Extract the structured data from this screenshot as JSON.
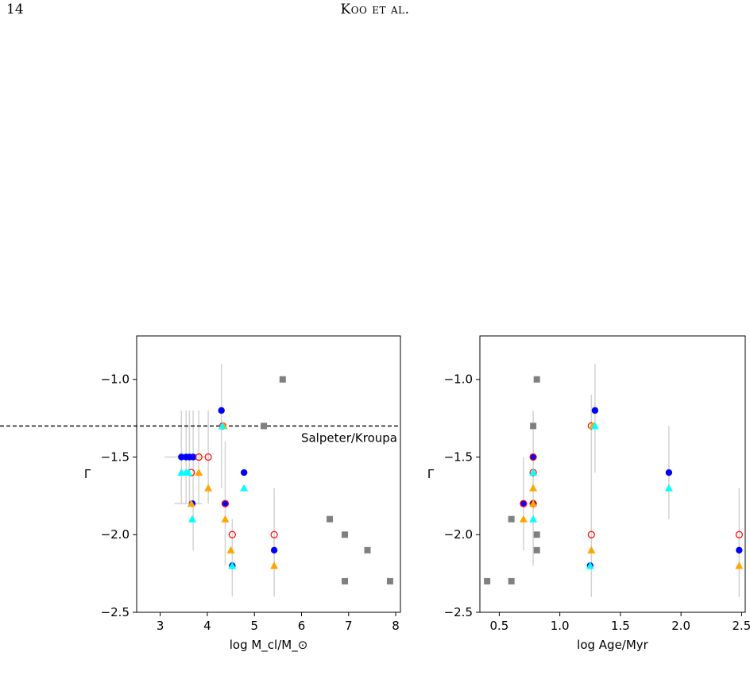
{
  "header": {
    "page_number": "14",
    "running_head": "Koo et al."
  },
  "chart_data": [
    {
      "type": "scatter",
      "title": "",
      "xlabel": "log M_cl/M_⊙",
      "ylabel": "Γ",
      "xlim": [
        2.5,
        8.1
      ],
      "ylim": [
        -2.5,
        -0.72
      ],
      "xticks": [
        "3",
        "4",
        "5",
        "6",
        "7",
        "8"
      ],
      "yticks": [
        "−1.0",
        "−1.5",
        "−2.0",
        "−2.5"
      ],
      "reference_line": {
        "y": -1.3,
        "style": "dashed",
        "label": "Salpeter/Kroupa"
      },
      "grid": false,
      "series": [
        {
          "marker": "circle",
          "color": "#0000ff",
          "points": [
            [
              3.45,
              -1.5
            ],
            [
              3.55,
              -1.5
            ],
            [
              3.62,
              -1.5
            ],
            [
              3.7,
              -1.5
            ],
            [
              4.3,
              -1.2
            ],
            [
              4.78,
              -1.6
            ],
            [
              4.38,
              -1.8
            ],
            [
              3.68,
              -1.8
            ],
            [
              4.53,
              -2.2
            ],
            [
              5.42,
              -2.1
            ]
          ]
        },
        {
          "marker": "open-circle",
          "color": "#ff0000",
          "points": [
            [
              3.82,
              -1.5
            ],
            [
              4.02,
              -1.5
            ],
            [
              3.66,
              -1.6
            ],
            [
              4.33,
              -1.3
            ],
            [
              4.38,
              -1.8
            ],
            [
              4.53,
              -2.0
            ],
            [
              5.42,
              -2.0
            ]
          ]
        },
        {
          "marker": "triangle",
          "color": "#ffa500",
          "points": [
            [
              3.82,
              -1.6
            ],
            [
              4.02,
              -1.7
            ],
            [
              3.66,
              -1.8
            ],
            [
              4.35,
              -1.3
            ],
            [
              4.38,
              -1.9
            ],
            [
              4.5,
              -2.1
            ],
            [
              5.42,
              -2.2
            ]
          ]
        },
        {
          "marker": "triangle",
          "color": "#00ffff",
          "points": [
            [
              3.45,
              -1.6
            ],
            [
              3.55,
              -1.6
            ],
            [
              3.6,
              -1.6
            ],
            [
              3.68,
              -1.9
            ],
            [
              4.32,
              -1.3
            ],
            [
              4.78,
              -1.7
            ],
            [
              4.53,
              -2.2
            ]
          ]
        },
        {
          "marker": "square",
          "color": "#808080",
          "points": [
            [
              5.6,
              -1.0
            ],
            [
              5.2,
              -1.3
            ],
            [
              6.6,
              -1.9
            ],
            [
              6.92,
              -2.0
            ],
            [
              7.4,
              -2.1
            ],
            [
              6.92,
              -2.3
            ],
            [
              7.88,
              -2.3
            ]
          ]
        }
      ]
    },
    {
      "type": "scatter",
      "title": "",
      "xlabel": "log Age/Myr",
      "ylabel": "Γ",
      "xlim": [
        0.34,
        2.53
      ],
      "ylim": [
        -2.5,
        -0.72
      ],
      "xticks": [
        "0.5",
        "1.0",
        "1.5",
        "2.0",
        "2.5"
      ],
      "yticks": [
        "−1.0",
        "−1.5",
        "−2.0",
        "−2.5"
      ],
      "grid": false,
      "series": [
        {
          "marker": "circle",
          "color": "#0000ff",
          "points": [
            [
              1.29,
              -1.2
            ],
            [
              0.78,
              -1.5
            ],
            [
              1.9,
              -1.6
            ],
            [
              0.7,
              -1.8
            ],
            [
              0.78,
              -1.8
            ],
            [
              1.25,
              -2.2
            ],
            [
              2.48,
              -2.1
            ]
          ]
        },
        {
          "marker": "open-circle",
          "color": "#ff0000",
          "points": [
            [
              1.26,
              -1.3
            ],
            [
              0.78,
              -1.5
            ],
            [
              0.78,
              -1.6
            ],
            [
              0.7,
              -1.8
            ],
            [
              0.78,
              -1.8
            ],
            [
              1.26,
              -2.0
            ],
            [
              2.48,
              -2.0
            ]
          ]
        },
        {
          "marker": "triangle",
          "color": "#ffa500",
          "points": [
            [
              1.27,
              -1.3
            ],
            [
              0.78,
              -1.7
            ],
            [
              0.7,
              -1.9
            ],
            [
              0.78,
              -1.8
            ],
            [
              1.26,
              -2.1
            ],
            [
              2.48,
              -2.2
            ]
          ]
        },
        {
          "marker": "triangle",
          "color": "#00ffff",
          "points": [
            [
              1.29,
              -1.3
            ],
            [
              0.78,
              -1.6
            ],
            [
              1.9,
              -1.7
            ],
            [
              0.78,
              -1.9
            ],
            [
              1.25,
              -2.2
            ]
          ]
        },
        {
          "marker": "square",
          "color": "#808080",
          "points": [
            [
              0.81,
              -1.0
            ],
            [
              0.78,
              -1.3
            ],
            [
              0.6,
              -1.9
            ],
            [
              0.81,
              -2.0
            ],
            [
              0.81,
              -2.1
            ],
            [
              0.4,
              -2.3
            ],
            [
              0.6,
              -2.3
            ]
          ]
        }
      ]
    }
  ]
}
